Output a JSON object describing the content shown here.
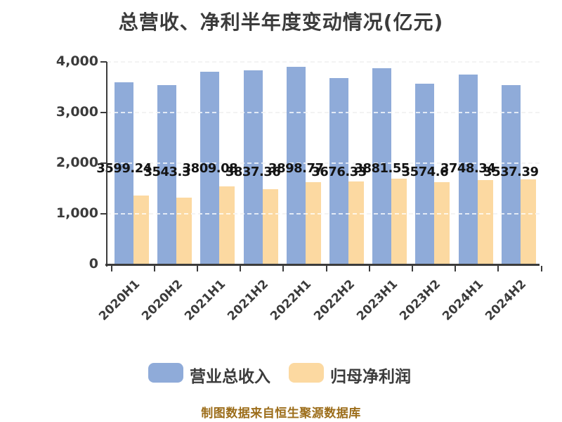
{
  "title": "总营收、净利半年度变动情况(亿元)",
  "footer": "制图数据来自恒生聚源数据库",
  "legend": [
    {
      "label": "营业总收入",
      "color": "#8fabd9"
    },
    {
      "label": "归母净利润",
      "color": "#fcd9a1"
    }
  ],
  "colors": {
    "revenue_bar": "#8fabd9",
    "profit_bar": "#fcd9a1",
    "title_text": "#3b3b3b",
    "value_label_text": "#141414",
    "axis": "#3c3c3c",
    "gridline": "#cdcdcd",
    "footer_text": "#9c6d1a"
  },
  "chart_data": {
    "type": "bar",
    "title": "总营收、净利半年度变动情况(亿元)",
    "categories": [
      "2020H1",
      "2020H2",
      "2021H1",
      "2021H2",
      "2022H1",
      "2022H2",
      "2023H1",
      "2023H2",
      "2024H1",
      "2024H2"
    ],
    "series": [
      {
        "name": "营业总收入",
        "color": "#8fabd9",
        "values": [
          3599.24,
          3543.3,
          3809.08,
          3837.36,
          3898.77,
          3676.33,
          3881.55,
          3574.6,
          3748.34,
          3537.39
        ],
        "data_labels": [
          "3599.24",
          "3543.3",
          "3809.08",
          "3837.36",
          "3898.77",
          "3676.33",
          "3881.55",
          "3574.6",
          "3748.34",
          "3537.39"
        ],
        "data_labels_visible": true
      },
      {
        "name": "归母净利润",
        "color": "#fcd9a1",
        "values": [
          1365,
          1325,
          1545,
          1490,
          1630,
          1645,
          1700,
          1630,
          1670,
          1685
        ],
        "data_labels_visible": false
      }
    ],
    "ylim": [
      0,
      4000
    ],
    "yticks": [
      "0",
      "1,000",
      "2,000",
      "3,000",
      "4,000"
    ],
    "ytick_values": [
      0,
      1000,
      2000,
      3000,
      4000
    ],
    "grid": "horizontal-dashed",
    "legend_position": "bottom",
    "xlabel_rotation_deg": 45
  }
}
